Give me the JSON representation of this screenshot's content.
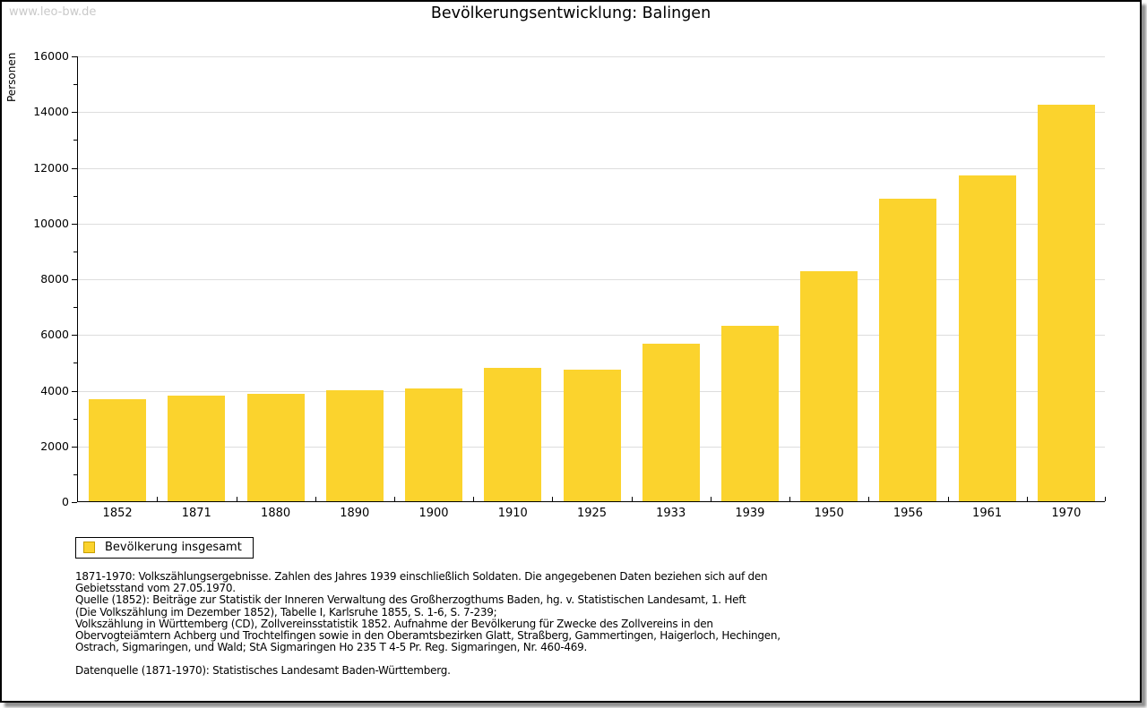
{
  "page": {
    "watermark": "www.leo-bw.de",
    "title": "Bevölkerungsentwicklung: Balingen"
  },
  "chart_data": {
    "type": "bar",
    "title": "Bevölkerungsentwicklung: Balingen",
    "xlabel": "",
    "ylabel": "Personen",
    "categories": [
      "1852",
      "1871",
      "1880",
      "1890",
      "1900",
      "1910",
      "1925",
      "1933",
      "1939",
      "1950",
      "1956",
      "1961",
      "1970"
    ],
    "values": [
      3670,
      3800,
      3860,
      4000,
      4040,
      4800,
      4730,
      5660,
      6300,
      8260,
      10850,
      11700,
      14250
    ],
    "ylim": [
      0,
      16000
    ],
    "ytick_step": 2000,
    "minor_tick_step": 1000,
    "grid": "horizontal",
    "gridline_color": "#dddddd",
    "bar_color": "#FBD32D",
    "legend_position": "bottom-left",
    "legend_entries": [
      "Bevölkerung insgesamt"
    ]
  },
  "legend": {
    "label": "Bevölkerung insgesamt",
    "swatch_color": "#FBD32D",
    "swatch_border_color": "#C79F00"
  },
  "notes": {
    "block1": "1871-1970: Volkszählungsergebnisse. Zahlen des Jahres 1939 einschließlich Soldaten. Die angegebenen Daten beziehen sich auf den\nGebietsstand vom 27.05.1970.\nQuelle (1852): Beiträge zur Statistik der Inneren Verwaltung des Großherzogthums Baden, hg. v. Statistischen Landesamt, 1. Heft\n(Die Volkszählung im Dezember 1852), Tabelle I, Karlsruhe 1855, S. 1-6, S. 7-239;\nVolkszählung in Württemberg (CD), Zollvereinsstatistik 1852. Aufnahme der Bevölkerung für Zwecke des Zollvereins in den\nObervogteiämtern Achberg und Trochtelfingen sowie in den Oberamtsbezirken Glatt, Straßberg, Gammertingen, Haigerloch, Hechingen,\nOstrach, Sigmaringen, und Wald; StA Sigmaringen Ho 235 T 4-5 Pr. Reg. Sigmaringen, Nr. 460-469.",
    "datasource": "Datenquelle (1871-1970): Statistisches Landesamt Baden-Württemberg."
  },
  "colors": {
    "bar": "#FBD32D",
    "swatch_border": "#C79F00",
    "gridline": "#dddddd",
    "watermark": "#c9c9c9",
    "page_border": "#000000"
  }
}
